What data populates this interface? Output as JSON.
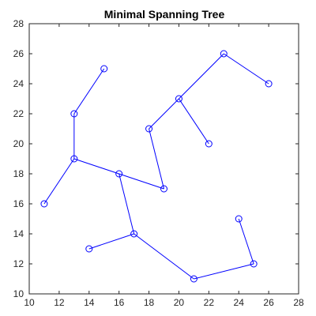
{
  "chart_data": {
    "type": "scatter",
    "title": "Minimal Spanning Tree",
    "xlabel": "",
    "ylabel": "",
    "xlim": [
      10,
      28
    ],
    "ylim": [
      10,
      28
    ],
    "xticks": [
      10,
      12,
      14,
      16,
      18,
      20,
      22,
      24,
      26,
      28
    ],
    "yticks": [
      10,
      12,
      14,
      16,
      18,
      20,
      22,
      24,
      26,
      28
    ],
    "grid": false,
    "color": "#0000ff",
    "nodes": [
      {
        "x": 15,
        "y": 25
      },
      {
        "x": 13,
        "y": 22
      },
      {
        "x": 13,
        "y": 19
      },
      {
        "x": 11,
        "y": 16
      },
      {
        "x": 16,
        "y": 18
      },
      {
        "x": 19,
        "y": 17
      },
      {
        "x": 18,
        "y": 21
      },
      {
        "x": 20,
        "y": 23
      },
      {
        "x": 23,
        "y": 26
      },
      {
        "x": 26,
        "y": 24
      },
      {
        "x": 22,
        "y": 20
      },
      {
        "x": 17,
        "y": 14
      },
      {
        "x": 14,
        "y": 13
      },
      {
        "x": 21,
        "y": 11
      },
      {
        "x": 25,
        "y": 12
      },
      {
        "x": 24,
        "y": 15
      }
    ],
    "edges": [
      [
        0,
        1
      ],
      [
        1,
        2
      ],
      [
        2,
        3
      ],
      [
        2,
        4
      ],
      [
        4,
        5
      ],
      [
        5,
        6
      ],
      [
        6,
        7
      ],
      [
        7,
        8
      ],
      [
        8,
        9
      ],
      [
        7,
        10
      ],
      [
        4,
        11
      ],
      [
        11,
        12
      ],
      [
        11,
        13
      ],
      [
        13,
        14
      ],
      [
        14,
        15
      ]
    ]
  }
}
